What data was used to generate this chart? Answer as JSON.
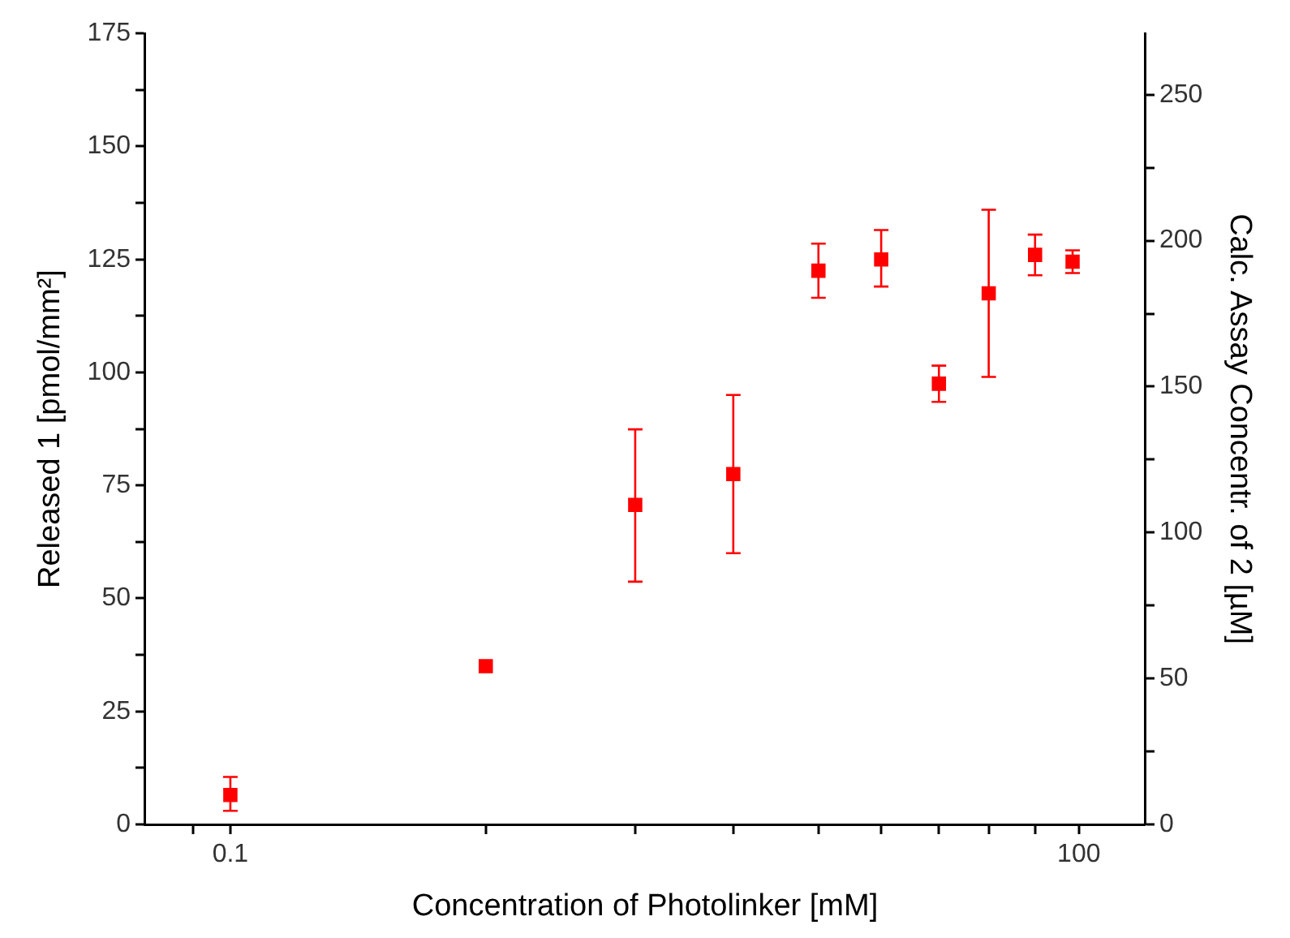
{
  "chart_data": {
    "type": "scatter",
    "xlabel": "Concentration of Photolinker [mM]",
    "ylabel": "Released 1 [pmol/mm²]",
    "y2label": "Calc. Assay Concentr. of 2 [µM]",
    "x": [
      0.1,
      0.8,
      2.7,
      6,
      12,
      20,
      32,
      48,
      70,
      95
    ],
    "series": [
      {
        "color": "#ff0000",
        "values": [
          6.5,
          35,
          70.7,
          77.5,
          122.5,
          125,
          97.5,
          117.5,
          126,
          124.5
        ],
        "errors": [
          [
            3,
            10.5
          ],
          null,
          [
            53.7,
            87.4
          ],
          [
            60,
            95
          ],
          [
            116.5,
            128.5
          ],
          [
            119,
            131.5
          ],
          [
            93.5,
            101.5
          ],
          [
            99,
            136
          ],
          [
            121.5,
            130.5
          ],
          [
            122,
            127
          ]
        ]
      }
    ],
    "log": "x",
    "xlim": [
      0.05,
      171
    ],
    "xticks": [
      {
        "value": 0.074,
        "label": null
      },
      0.1,
      {
        "value": 0.8,
        "label": null
      },
      {
        "value": 2.7,
        "label": null
      },
      {
        "value": 6,
        "label": null
      },
      {
        "value": 12,
        "label": null
      },
      {
        "value": 20,
        "label": null
      },
      {
        "value": 32,
        "label": null
      },
      {
        "value": 48,
        "label": null
      },
      {
        "value": 70,
        "label": null
      },
      100
    ],
    "ylim": [
      0,
      175
    ],
    "yticks": [
      0,
      {
        "value": 12.5,
        "label": null
      },
      25,
      {
        "value": 37.5,
        "label": null
      },
      50,
      {
        "value": 62.5,
        "label": null
      },
      75,
      {
        "value": 87.5,
        "label": null
      },
      100,
      {
        "value": 112.5,
        "label": null
      },
      125,
      {
        "value": 137.5,
        "label": null
      },
      150,
      {
        "value": 162.5,
        "label": null
      },
      175
    ],
    "y2lim": [
      0,
      271
    ],
    "y2ticks": [
      0,
      {
        "value": 25,
        "label": null
      },
      50,
      {
        "value": 75,
        "label": null
      },
      100,
      {
        "value": 125,
        "label": null
      },
      150,
      {
        "value": 175,
        "label": null
      },
      200,
      {
        "value": 225,
        "label": null
      },
      250
    ],
    "grid": false,
    "legend": false,
    "marker": "square"
  }
}
